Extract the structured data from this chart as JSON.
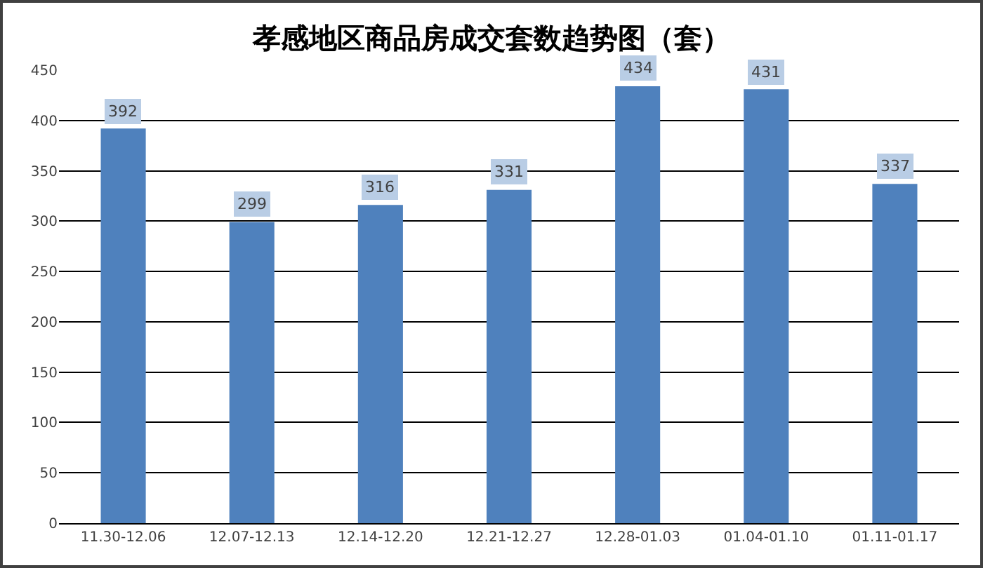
{
  "chart_data": {
    "type": "bar",
    "title": "孝感地区商品房成交套数趋势图（套）",
    "categories": [
      "11.30-12.06",
      "12.07-12.13",
      "12.14-12.20",
      "12.21-12.27",
      "12.28-01.03",
      "01.04-01.10",
      "01.11-01.17"
    ],
    "values": [
      392,
      299,
      316,
      331,
      434,
      431,
      337
    ],
    "color": "#4f81bd",
    "ylim": [
      0,
      450
    ],
    "yticks": [
      0,
      50,
      100,
      150,
      200,
      250,
      300,
      350,
      400,
      450
    ],
    "grid": "y",
    "data_labels": true
  }
}
